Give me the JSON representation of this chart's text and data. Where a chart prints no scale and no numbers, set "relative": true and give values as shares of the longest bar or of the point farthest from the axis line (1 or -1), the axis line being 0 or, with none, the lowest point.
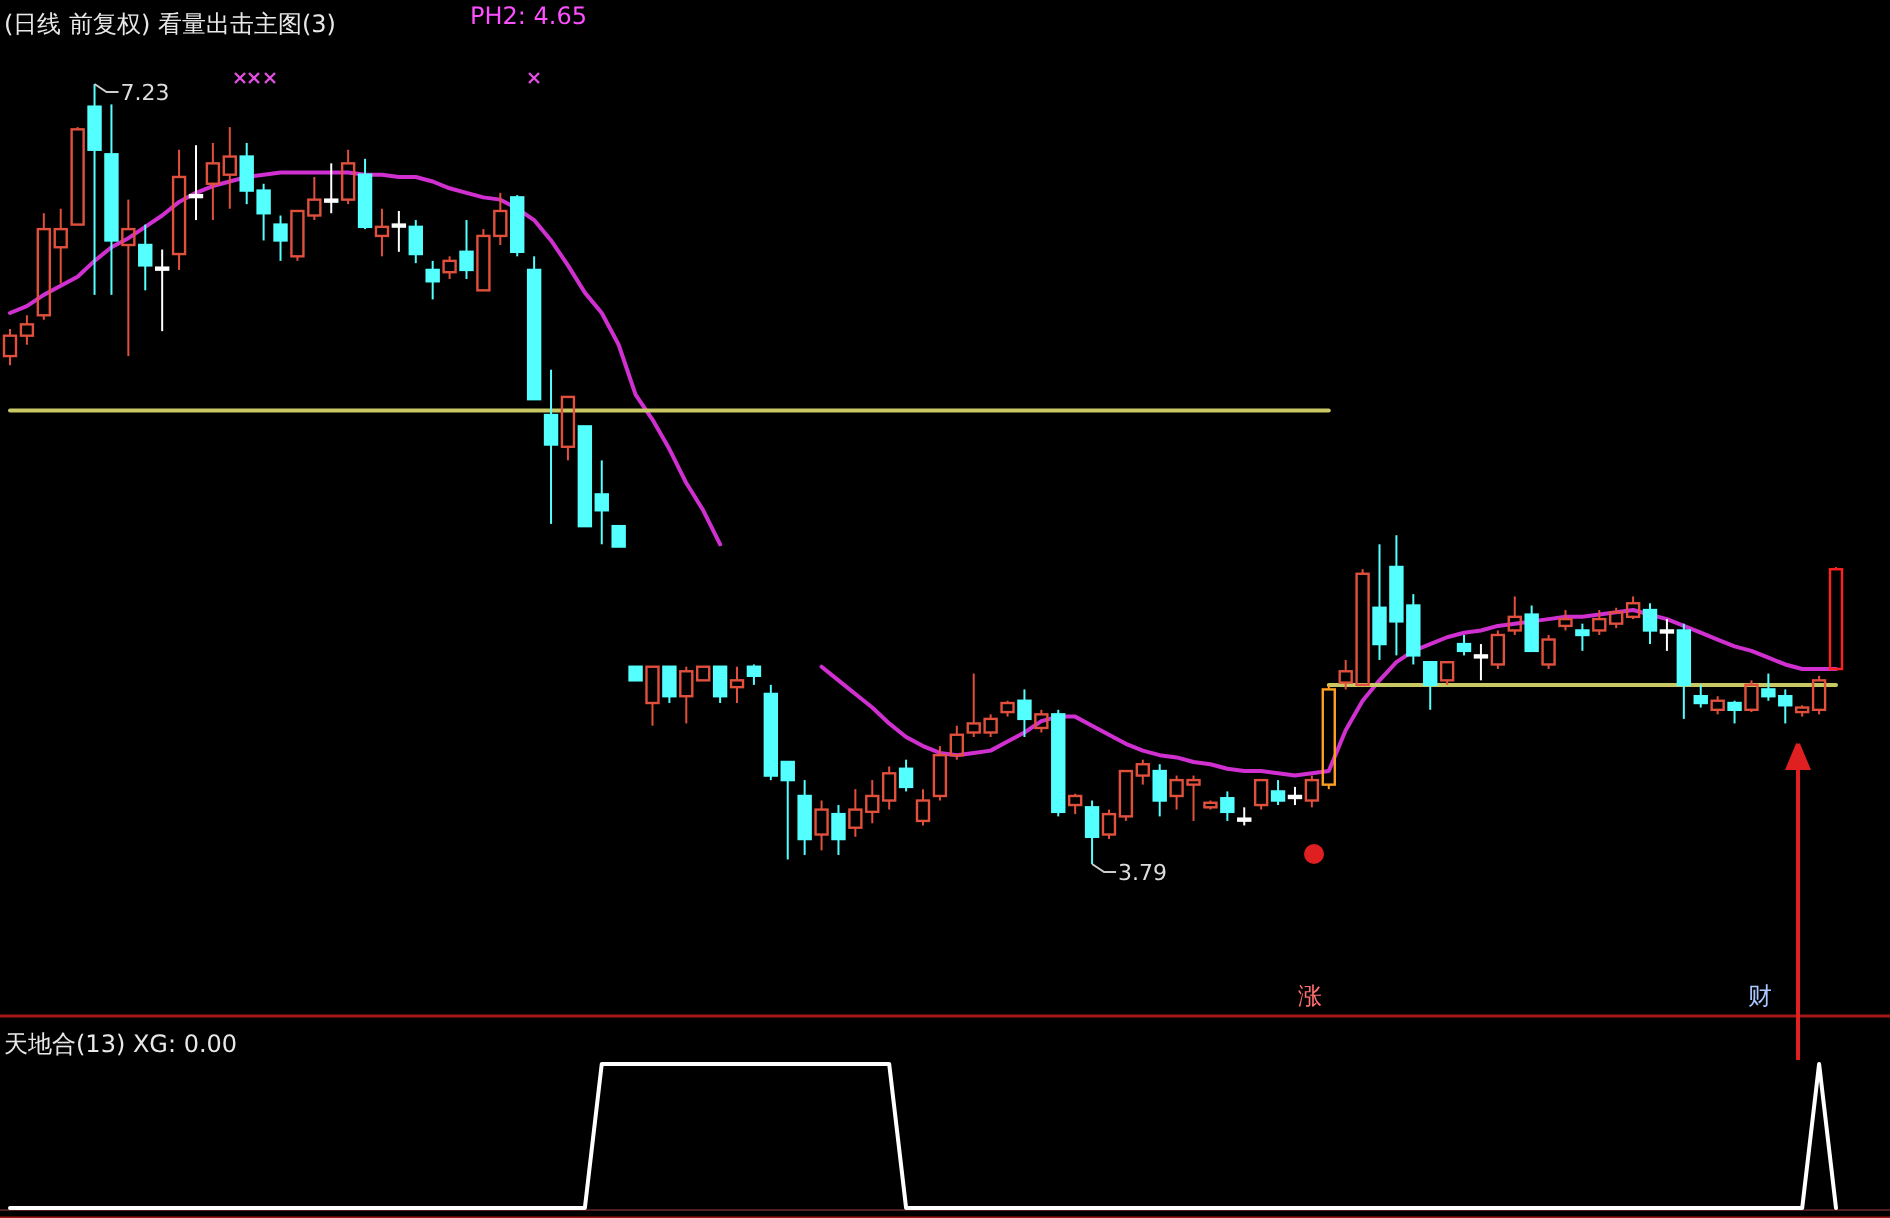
{
  "chart_data": [
    {
      "type": "candlestick",
      "title": "(日线 前复权) 看量出击主图(3)",
      "categories": [
        null,
        null,
        null,
        null,
        null,
        null,
        null,
        null,
        null,
        null,
        null,
        null,
        null,
        null,
        null,
        null,
        null,
        null,
        null,
        null,
        null,
        null,
        null,
        null,
        null,
        null,
        null,
        null,
        null,
        null,
        null,
        null,
        null,
        null,
        null,
        null,
        null,
        null,
        null,
        null,
        null,
        null,
        null,
        null,
        null,
        null,
        null,
        null,
        null,
        null,
        null,
        null,
        null,
        null,
        null,
        null,
        null,
        null,
        null,
        null,
        null,
        null,
        null,
        null,
        null,
        null,
        null,
        null,
        null,
        null,
        null,
        null,
        null,
        null,
        null,
        null,
        null,
        null,
        null,
        null,
        null,
        null,
        null,
        null,
        null,
        null,
        null,
        null,
        null,
        null,
        null,
        null,
        null,
        null,
        null,
        null,
        null,
        null,
        null,
        null,
        null,
        null,
        null,
        null,
        null,
        null,
        null,
        null,
        null
      ],
      "ohlc": [
        [
          6.03,
          6.15,
          5.99,
          6.12
        ],
        [
          6.12,
          6.21,
          6.08,
          6.17
        ],
        [
          6.21,
          6.66,
          6.19,
          6.59
        ],
        [
          6.51,
          6.68,
          6.35,
          6.59
        ],
        [
          6.61,
          7.04,
          6.61,
          7.03
        ],
        [
          7.13,
          7.23,
          6.3,
          6.94
        ],
        [
          6.92,
          7.14,
          6.3,
          6.54
        ],
        [
          6.52,
          6.72,
          6.03,
          6.59
        ],
        [
          6.52,
          6.61,
          6.32,
          6.43
        ],
        [
          6.42,
          6.5,
          6.14,
          6.42
        ],
        [
          6.48,
          6.94,
          6.41,
          6.82
        ],
        [
          6.74,
          6.96,
          6.63,
          6.74
        ],
        [
          6.79,
          6.97,
          6.63,
          6.88
        ],
        [
          6.83,
          7.04,
          6.68,
          6.91
        ],
        [
          6.91,
          6.97,
          6.7,
          6.76
        ],
        [
          6.76,
          6.79,
          6.54,
          6.66
        ],
        [
          6.61,
          6.65,
          6.45,
          6.54
        ],
        [
          6.47,
          6.67,
          6.45,
          6.67
        ],
        [
          6.65,
          6.82,
          6.63,
          6.72
        ],
        [
          6.72,
          6.88,
          6.66,
          6.72
        ],
        [
          6.72,
          6.94,
          6.7,
          6.88
        ],
        [
          6.83,
          6.9,
          6.59,
          6.6
        ],
        [
          6.56,
          6.68,
          6.47,
          6.6
        ],
        [
          6.61,
          6.67,
          6.49,
          6.61
        ],
        [
          6.6,
          6.63,
          6.44,
          6.48
        ],
        [
          6.41,
          6.45,
          6.28,
          6.36
        ],
        [
          6.4,
          6.47,
          6.37,
          6.45
        ],
        [
          6.49,
          6.63,
          6.37,
          6.41
        ],
        [
          6.32,
          6.59,
          6.32,
          6.56
        ],
        [
          6.56,
          6.75,
          6.52,
          6.67
        ],
        [
          6.73,
          6.74,
          6.47,
          6.49
        ],
        [
          6.41,
          6.47,
          5.84,
          5.84
        ],
        [
          5.77,
          5.97,
          5.29,
          5.64
        ],
        [
          5.63,
          5.85,
          5.57,
          5.85
        ],
        [
          5.72,
          5.72,
          5.28,
          5.28
        ],
        [
          5.42,
          5.57,
          5.2,
          5.35
        ],
        [
          5.28,
          5.28,
          5.19,
          5.19
        ],
        [
          4.66,
          4.66,
          4.6,
          4.6
        ],
        [
          4.5,
          4.66,
          4.4,
          4.66
        ],
        [
          4.66,
          4.66,
          4.5,
          4.53
        ],
        [
          4.53,
          4.66,
          4.41,
          4.64
        ],
        [
          4.6,
          4.66,
          4.6,
          4.66
        ],
        [
          4.66,
          4.66,
          4.5,
          4.53
        ],
        [
          4.57,
          4.66,
          4.5,
          4.6
        ],
        [
          4.66,
          4.67,
          4.58,
          4.62
        ],
        [
          4.54,
          4.58,
          4.16,
          4.18
        ],
        [
          4.24,
          4.24,
          3.81,
          4.16
        ],
        [
          4.09,
          4.16,
          3.83,
          3.9
        ],
        [
          3.92,
          4.07,
          3.85,
          4.03
        ],
        [
          4.01,
          4.05,
          3.83,
          3.9
        ],
        [
          3.95,
          4.12,
          3.91,
          4.03
        ],
        [
          4.02,
          4.16,
          3.97,
          4.09
        ],
        [
          4.07,
          4.22,
          4.03,
          4.19
        ],
        [
          4.21,
          4.25,
          4.11,
          4.13
        ],
        [
          3.98,
          4.12,
          3.96,
          4.07
        ],
        [
          4.09,
          4.31,
          4.07,
          4.27
        ],
        [
          4.27,
          4.4,
          4.25,
          4.36
        ],
        [
          4.37,
          4.63,
          4.35,
          4.41
        ],
        [
          4.37,
          4.45,
          4.35,
          4.43
        ],
        [
          4.46,
          4.51,
          4.44,
          4.5
        ],
        [
          4.51,
          4.56,
          4.35,
          4.43
        ],
        [
          4.39,
          4.47,
          4.37,
          4.45
        ],
        [
          4.45,
          4.47,
          4.0,
          4.02
        ],
        [
          4.05,
          4.1,
          4.01,
          4.09
        ],
        [
          4.04,
          4.07,
          3.79,
          3.91
        ],
        [
          3.92,
          4.03,
          3.9,
          4.01
        ],
        [
          4.0,
          4.2,
          3.98,
          4.2
        ],
        [
          4.18,
          4.25,
          4.14,
          4.23
        ],
        [
          4.2,
          4.23,
          4.0,
          4.07
        ],
        [
          4.09,
          4.18,
          4.03,
          4.16
        ],
        [
          4.14,
          4.18,
          3.98,
          4.16
        ],
        [
          4.04,
          4.07,
          4.03,
          4.06
        ],
        [
          4.08,
          4.11,
          3.98,
          4.02
        ],
        [
          3.99,
          4.04,
          3.96,
          3.99
        ],
        [
          4.05,
          4.16,
          4.03,
          4.16
        ],
        [
          4.11,
          4.16,
          4.05,
          4.07
        ],
        [
          4.09,
          4.13,
          4.05,
          4.09
        ],
        [
          4.07,
          4.18,
          4.04,
          4.16
        ],
        [
          4.14,
          4.58,
          4.12,
          4.56
        ],
        [
          4.59,
          4.69,
          4.56,
          4.64
        ],
        [
          4.58,
          5.09,
          4.58,
          5.07
        ],
        [
          4.92,
          5.2,
          4.69,
          4.76
        ],
        [
          5.1,
          5.24,
          4.71,
          4.86
        ],
        [
          4.93,
          4.98,
          4.67,
          4.71
        ],
        [
          4.68,
          4.68,
          4.47,
          4.58
        ],
        [
          4.6,
          4.68,
          4.58,
          4.68
        ],
        [
          4.76,
          4.8,
          4.71,
          4.73
        ],
        [
          4.71,
          4.76,
          4.6,
          4.71
        ],
        [
          4.67,
          4.82,
          4.65,
          4.8
        ],
        [
          4.82,
          4.97,
          4.8,
          4.88
        ],
        [
          4.89,
          4.93,
          4.73,
          4.73
        ],
        [
          4.67,
          4.8,
          4.65,
          4.78
        ],
        [
          4.84,
          4.91,
          4.82,
          4.87
        ],
        [
          4.82,
          4.85,
          4.73,
          4.8
        ],
        [
          4.82,
          4.91,
          4.8,
          4.87
        ],
        [
          4.85,
          4.92,
          4.83,
          4.9
        ],
        [
          4.88,
          4.97,
          4.87,
          4.94
        ],
        [
          4.91,
          4.94,
          4.76,
          4.82
        ],
        [
          4.82,
          4.87,
          4.73,
          4.82
        ],
        [
          4.82,
          4.85,
          4.43,
          4.58
        ],
        [
          4.53,
          4.58,
          4.48,
          4.5
        ],
        [
          4.47,
          4.53,
          4.45,
          4.51
        ],
        [
          4.5,
          4.51,
          4.41,
          4.47
        ],
        [
          4.47,
          4.6,
          4.46,
          4.58
        ],
        [
          4.56,
          4.63,
          4.51,
          4.53
        ],
        [
          4.53,
          4.56,
          4.41,
          4.49
        ],
        [
          4.46,
          4.49,
          4.44,
          4.48
        ],
        [
          4.47,
          4.62,
          4.45,
          4.6
        ],
        [
          4.65,
          5.1,
          4.65,
          5.09
        ]
      ],
      "colors": [
        "#e0503c",
        "#e0503c",
        "#e0503c",
        "#e0503c",
        "#e0503c",
        "#54ffff",
        "#54ffff",
        "#e0503c",
        "#54ffff",
        "#ffffff",
        "#e0503c",
        "#ffffff",
        "#e0503c",
        "#e0503c",
        "#54ffff",
        "#54ffff",
        "#54ffff",
        "#e0503c",
        "#e0503c",
        "#ffffff",
        "#e0503c",
        "#54ffff",
        "#e0503c",
        "#ffffff",
        "#54ffff",
        "#54ffff",
        "#e0503c",
        "#54ffff",
        "#e0503c",
        "#e0503c",
        "#54ffff",
        "#54ffff",
        "#54ffff",
        "#e0503c",
        "#54ffff",
        "#54ffff",
        "#54ffff",
        "#54ffff",
        "#e0503c",
        "#54ffff",
        "#e0503c",
        "#e0503c",
        "#54ffff",
        "#e0503c",
        "#54ffff",
        "#54ffff",
        "#54ffff",
        "#54ffff",
        "#e0503c",
        "#54ffff",
        "#e0503c",
        "#e0503c",
        "#e0503c",
        "#54ffff",
        "#e0503c",
        "#e0503c",
        "#e0503c",
        "#e0503c",
        "#e0503c",
        "#e0503c",
        "#54ffff",
        "#e0503c",
        "#54ffff",
        "#e0503c",
        "#54ffff",
        "#e0503c",
        "#e0503c",
        "#e0503c",
        "#54ffff",
        "#e0503c",
        "#e0503c",
        "#e0503c",
        "#54ffff",
        "#ffffff",
        "#e0503c",
        "#54ffff",
        "#ffffff",
        "#e0503c",
        "#ffa020",
        "#e0503c",
        "#e0503c",
        "#54ffff",
        "#54ffff",
        "#54ffff",
        "#54ffff",
        "#e0503c",
        "#54ffff",
        "#ffffff",
        "#e0503c",
        "#e0503c",
        "#54ffff",
        "#e0503c",
        "#e0503c",
        "#54ffff",
        "#e0503c",
        "#e0503c",
        "#e0503c",
        "#54ffff",
        "#ffffff",
        "#54ffff",
        "#54ffff",
        "#e0503c",
        "#54ffff",
        "#e0503c",
        "#54ffff",
        "#54ffff",
        "#e0503c",
        "#e0503c",
        "#ff2020"
      ],
      "series": [
        {
          "type": "line",
          "color": "#d030d0",
          "values": [
            6.22,
            6.25,
            6.3,
            6.34,
            6.38,
            6.45,
            6.51,
            6.55,
            6.6,
            6.65,
            6.71,
            6.75,
            6.78,
            6.8,
            6.82,
            6.83,
            6.84,
            6.84,
            6.84,
            6.84,
            6.84,
            6.83,
            6.83,
            6.82,
            6.82,
            6.8,
            6.77,
            6.75,
            6.73,
            6.72,
            6.68,
            6.63,
            6.54,
            6.43,
            6.31,
            6.22,
            6.08,
            5.86,
            5.75,
            5.62,
            5.47,
            5.35,
            5.2,
            null,
            null,
            null,
            null,
            null,
            4.66,
            4.6,
            4.54,
            4.48,
            4.41,
            4.35,
            4.31,
            4.28,
            4.27,
            4.28,
            4.29,
            4.33,
            4.37,
            4.42,
            4.44,
            4.44,
            4.4,
            4.36,
            4.32,
            4.29,
            4.27,
            4.26,
            4.24,
            4.23,
            4.21,
            4.2,
            4.2,
            4.19,
            4.18,
            4.19,
            4.2,
            4.38,
            4.51,
            4.6,
            4.68,
            4.73,
            4.76,
            4.79,
            4.81,
            4.82,
            4.84,
            4.85,
            4.86,
            4.87,
            4.88,
            4.88,
            4.89,
            4.9,
            4.91,
            4.89,
            4.87,
            4.84,
            4.81,
            4.78,
            4.75,
            4.73,
            4.7,
            4.67,
            4.65,
            4.65,
            4.65
          ]
        },
        {
          "type": "line",
          "color": "#c8c864",
          "values": [
            5.79,
            5.79,
            5.79,
            5.79,
            5.79,
            5.79,
            5.79,
            5.79,
            5.79,
            5.79,
            5.79,
            5.79,
            5.79,
            5.79,
            5.79,
            5.79,
            5.79,
            5.79,
            5.79,
            5.79,
            5.79,
            5.79,
            5.79,
            5.79,
            5.79,
            5.79,
            5.79,
            5.79,
            5.79,
            5.79,
            5.79,
            5.79,
            5.79,
            5.79,
            5.79,
            5.79,
            5.79,
            5.79,
            5.79,
            5.79,
            5.79,
            5.79,
            5.79,
            5.79,
            5.79,
            5.79,
            5.79,
            5.79,
            5.79,
            5.79,
            5.79,
            5.79,
            5.79,
            5.79,
            5.79,
            5.79,
            5.79,
            5.79,
            5.79,
            5.79,
            5.79,
            5.79,
            5.79,
            5.79,
            5.79,
            5.79,
            5.79,
            5.79,
            5.79,
            5.79,
            5.79,
            5.79,
            5.79,
            5.79,
            5.79,
            5.79,
            5.79,
            5.79,
            5.79,
            null,
            null,
            null,
            null,
            null,
            null,
            null,
            null,
            null,
            null,
            null,
            null,
            null,
            null,
            null,
            null,
            null,
            null,
            null,
            null,
            null,
            null,
            null,
            null,
            null,
            null,
            null,
            null,
            null,
            null
          ]
        },
        {
          "type": "line",
          "color": "#c8c864",
          "values": [
            null,
            null,
            null,
            null,
            null,
            null,
            null,
            null,
            null,
            null,
            null,
            null,
            null,
            null,
            null,
            null,
            null,
            null,
            null,
            null,
            null,
            null,
            null,
            null,
            null,
            null,
            null,
            null,
            null,
            null,
            null,
            null,
            null,
            null,
            null,
            null,
            null,
            null,
            null,
            null,
            null,
            null,
            null,
            null,
            null,
            null,
            null,
            null,
            null,
            null,
            null,
            null,
            null,
            null,
            null,
            null,
            null,
            null,
            null,
            null,
            null,
            null,
            null,
            null,
            null,
            null,
            null,
            null,
            null,
            null,
            null,
            null,
            null,
            null,
            null,
            null,
            null,
            null,
            4.58,
            4.58,
            4.58,
            4.58,
            4.58,
            4.58,
            4.58,
            4.58,
            4.58,
            4.58,
            4.58,
            4.58,
            4.58,
            4.58,
            4.58,
            4.58,
            4.58,
            4.58,
            4.58,
            4.58,
            4.58,
            4.58,
            4.58,
            4.58,
            4.58,
            4.58,
            4.58,
            4.58,
            4.58,
            4.58,
            4.58
          ]
        }
      ],
      "annotations": [
        "7.23",
        "3.79",
        "PH2: 4.65",
        "涨",
        "财"
      ]
    },
    {
      "type": "line",
      "title": "天地合(13) XG: 0.00",
      "relative": true,
      "categories": [
        null,
        null,
        null,
        null,
        null,
        null,
        null,
        null,
        null,
        null,
        null,
        null,
        null,
        null,
        null,
        null,
        null,
        null,
        null,
        null,
        null,
        null,
        null,
        null,
        null,
        null,
        null,
        null,
        null,
        null,
        null,
        null,
        null,
        null,
        null,
        null,
        null,
        null,
        null,
        null,
        null,
        null,
        null,
        null,
        null,
        null,
        null,
        null,
        null,
        null,
        null,
        null,
        null,
        null,
        null,
        null,
        null,
        null,
        null,
        null,
        null,
        null,
        null,
        null,
        null,
        null,
        null,
        null,
        null,
        null,
        null,
        null,
        null,
        null,
        null,
        null,
        null,
        null,
        null,
        null,
        null,
        null,
        null,
        null,
        null,
        null,
        null,
        null,
        null,
        null,
        null,
        null,
        null,
        null,
        null,
        null,
        null,
        null,
        null,
        null,
        null,
        null,
        null,
        null,
        null,
        null,
        null,
        null,
        null
      ],
      "series": [
        {
          "color": "#ffffff",
          "values": [
            0,
            0,
            0,
            0,
            0,
            0,
            0,
            0,
            0,
            0,
            0,
            0,
            0,
            0,
            0,
            0,
            0,
            0,
            0,
            0,
            0,
            0,
            0,
            0,
            0,
            0,
            0,
            0,
            0,
            0,
            0,
            0,
            0,
            0,
            0,
            1,
            1,
            1,
            1,
            1,
            1,
            1,
            1,
            1,
            1,
            1,
            1,
            1,
            1,
            1,
            1,
            1,
            1,
            0,
            0,
            0,
            0,
            0,
            0,
            0,
            0,
            0,
            0,
            0,
            0,
            0,
            0,
            0,
            0,
            0,
            0,
            0,
            0,
            0,
            0,
            0,
            0,
            0,
            0,
            0,
            0,
            0,
            0,
            0,
            0,
            0,
            0,
            0,
            0,
            0,
            0,
            0,
            0,
            0,
            0,
            0,
            0,
            0,
            0,
            0,
            0,
            0,
            0,
            0,
            0,
            0,
            0,
            1,
            0
          ]
        }
      ]
    }
  ]
}
